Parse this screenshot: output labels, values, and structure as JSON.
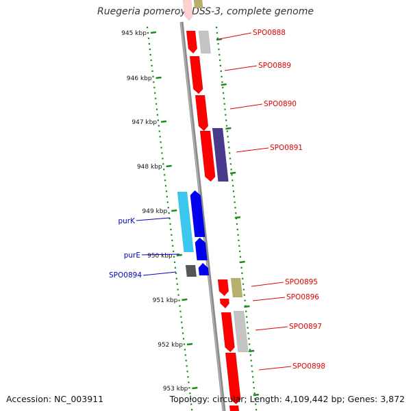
{
  "title": "Ruegeria pomeroyi DSS-3, complete genome",
  "accession": "Accession: NC_003911",
  "topology": "Topology: circular; Length: 4,109,442 bp; Genes: 3,872",
  "colors": {
    "backbone": "#8c8c8c",
    "ticks": "#1a8a1a",
    "red": "#ff0000",
    "grey": "#c4c4c4",
    "olive": "#b8ae6e",
    "navy": "#4a3a8c",
    "cyan": "#3cc8ee",
    "blue": "#0000ee",
    "dark": "#555555",
    "red_label": "#e00000",
    "blue_label": "#0000c0"
  },
  "kbp_labels": [
    "945 kbp",
    "946 kbp",
    "947 kbp",
    "948 kbp",
    "949 kbp",
    "950 kbp",
    "951 kbp",
    "952 kbp",
    "953 kbp"
  ],
  "gene_labels": [
    "SPO0888",
    "SPO0889",
    "SPO0890",
    "SPO0891",
    "purK",
    "purE",
    "SPO0894",
    "SPO0895",
    "SPO0896",
    "SPO0897",
    "SPO0898"
  ]
}
